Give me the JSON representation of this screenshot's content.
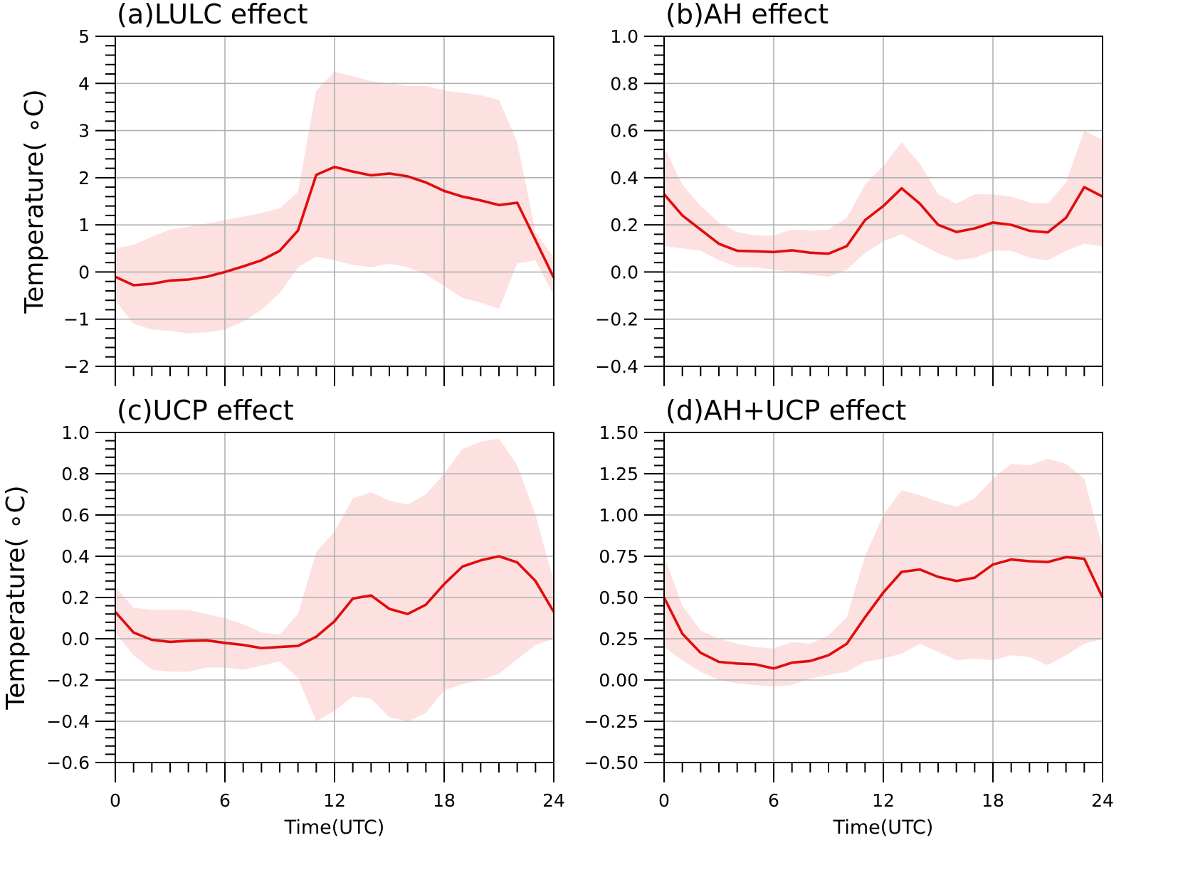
{
  "chart_data": [
    {
      "type": "line",
      "title": "(a)LULC effect",
      "xlabel": "",
      "ylabel": "Temperature( ∘C)",
      "xlim": [
        0,
        24
      ],
      "ylim": [
        -2,
        5
      ],
      "xticks": [
        0,
        6,
        12,
        18,
        24
      ],
      "xtick_labels": [
        "",
        "",
        "",
        "",
        ""
      ],
      "yticks": [
        -2,
        -1,
        0,
        1,
        2,
        3,
        4,
        5
      ],
      "ytick_labels": [
        "−2",
        "−1",
        "0",
        "1",
        "2",
        "3",
        "4",
        "5"
      ],
      "grid": true,
      "x": [
        0,
        1,
        2,
        3,
        4,
        5,
        6,
        7,
        8,
        9,
        10,
        11,
        12,
        13,
        14,
        15,
        16,
        17,
        18,
        19,
        20,
        21,
        22,
        23,
        24
      ],
      "series": [
        {
          "values": [
            -0.1,
            -0.28,
            -0.25,
            -0.18,
            -0.16,
            -0.1,
            0.0,
            0.12,
            0.25,
            0.45,
            0.88,
            2.06,
            2.23,
            2.13,
            2.05,
            2.09,
            2.03,
            1.9,
            1.72,
            1.6,
            1.52,
            1.42,
            1.47,
            0.68,
            -0.12
          ],
          "band_upper": [
            0.5,
            0.58,
            0.75,
            0.9,
            0.96,
            1.03,
            1.1,
            1.18,
            1.25,
            1.35,
            1.7,
            3.85,
            4.25,
            4.15,
            4.05,
            4.0,
            3.95,
            3.95,
            3.85,
            3.8,
            3.75,
            3.65,
            2.75,
            0.85,
            0.3
          ],
          "band_lower": [
            -0.6,
            -1.1,
            -1.22,
            -1.25,
            -1.3,
            -1.28,
            -1.22,
            -1.05,
            -0.8,
            -0.45,
            0.1,
            0.33,
            0.25,
            0.15,
            0.1,
            0.18,
            0.1,
            -0.05,
            -0.3,
            -0.55,
            -0.65,
            -0.78,
            0.18,
            0.25,
            -0.5
          ]
        }
      ]
    },
    {
      "type": "line",
      "title": "(b)AH effect",
      "xlabel": "",
      "ylabel": "",
      "xlim": [
        0,
        24
      ],
      "ylim": [
        -0.4,
        1.0
      ],
      "xticks": [
        0,
        6,
        12,
        18,
        24
      ],
      "xtick_labels": [
        "",
        "",
        "",
        "",
        ""
      ],
      "yticks": [
        -0.4,
        -0.2,
        0.0,
        0.2,
        0.4,
        0.6,
        0.8,
        1.0
      ],
      "ytick_labels": [
        "−0.4",
        "−0.2",
        "0.0",
        "0.2",
        "0.4",
        "0.6",
        "0.8",
        "1.0"
      ],
      "grid": true,
      "x": [
        0,
        1,
        2,
        3,
        4,
        5,
        6,
        7,
        8,
        9,
        10,
        11,
        12,
        13,
        14,
        15,
        16,
        17,
        18,
        19,
        20,
        21,
        22,
        23,
        24
      ],
      "series": [
        {
          "values": [
            0.33,
            0.24,
            0.18,
            0.12,
            0.09,
            0.088,
            0.085,
            0.092,
            0.082,
            0.078,
            0.11,
            0.22,
            0.28,
            0.355,
            0.29,
            0.2,
            0.17,
            0.185,
            0.21,
            0.2,
            0.175,
            0.168,
            0.23,
            0.36,
            0.32
          ],
          "band_upper": [
            0.53,
            0.37,
            0.28,
            0.21,
            0.17,
            0.155,
            0.155,
            0.18,
            0.175,
            0.18,
            0.23,
            0.37,
            0.45,
            0.55,
            0.46,
            0.33,
            0.29,
            0.33,
            0.33,
            0.32,
            0.295,
            0.29,
            0.38,
            0.6,
            0.56
          ],
          "band_lower": [
            0.11,
            0.1,
            0.09,
            0.05,
            0.02,
            0.02,
            0.01,
            0.0,
            -0.01,
            -0.02,
            0.01,
            0.08,
            0.13,
            0.16,
            0.12,
            0.08,
            0.05,
            0.06,
            0.09,
            0.09,
            0.06,
            0.05,
            0.09,
            0.12,
            0.11
          ]
        }
      ]
    },
    {
      "type": "line",
      "title": "(c)UCP effect",
      "xlabel": "Time(UTC)",
      "ylabel": "Temperature( ∘C)",
      "xlim": [
        0,
        24
      ],
      "ylim": [
        -0.6,
        1.0
      ],
      "xticks": [
        0,
        6,
        12,
        18,
        24
      ],
      "xtick_labels": [
        "0",
        "6",
        "12",
        "18",
        "24"
      ],
      "yticks": [
        -0.6,
        -0.4,
        -0.2,
        0.0,
        0.2,
        0.4,
        0.6,
        0.8,
        1.0
      ],
      "ytick_labels": [
        "−0.6",
        "−0.4",
        "−0.2",
        "0.0",
        "0.2",
        "0.4",
        "0.6",
        "0.8",
        "1.0"
      ],
      "grid": true,
      "x": [
        0,
        1,
        2,
        3,
        4,
        5,
        6,
        7,
        8,
        9,
        10,
        11,
        12,
        13,
        14,
        15,
        16,
        17,
        18,
        19,
        20,
        21,
        22,
        23,
        24
      ],
      "series": [
        {
          "values": [
            0.13,
            0.03,
            -0.005,
            -0.015,
            -0.01,
            -0.008,
            -0.02,
            -0.03,
            -0.045,
            -0.04,
            -0.035,
            0.01,
            0.085,
            0.195,
            0.21,
            0.145,
            0.12,
            0.165,
            0.265,
            0.35,
            0.38,
            0.4,
            0.37,
            0.28,
            0.13
          ],
          "band_upper": [
            0.25,
            0.15,
            0.14,
            0.14,
            0.14,
            0.12,
            0.1,
            0.07,
            0.03,
            0.02,
            0.12,
            0.42,
            0.52,
            0.68,
            0.71,
            0.67,
            0.65,
            0.7,
            0.8,
            0.92,
            0.955,
            0.97,
            0.84,
            0.6,
            0.28
          ],
          "band_lower": [
            0.03,
            -0.08,
            -0.15,
            -0.16,
            -0.16,
            -0.14,
            -0.14,
            -0.15,
            -0.13,
            -0.11,
            -0.19,
            -0.4,
            -0.35,
            -0.28,
            -0.29,
            -0.38,
            -0.4,
            -0.36,
            -0.25,
            -0.22,
            -0.2,
            -0.17,
            -0.1,
            -0.03,
            0.0
          ]
        }
      ]
    },
    {
      "type": "line",
      "title": "(d)AH+UCP effect",
      "xlabel": "Time(UTC)",
      "ylabel": "",
      "xlim": [
        0,
        24
      ],
      "ylim": [
        -0.5,
        1.5
      ],
      "xticks": [
        0,
        6,
        12,
        18,
        24
      ],
      "xtick_labels": [
        "0",
        "6",
        "12",
        "18",
        "24"
      ],
      "yticks": [
        -0.5,
        -0.25,
        0.0,
        0.25,
        0.5,
        0.75,
        1.0,
        1.25,
        1.5
      ],
      "ytick_labels": [
        "−0.50",
        "−0.25",
        "0.00",
        "0.25",
        "0.50",
        "0.75",
        "1.00",
        "1.25",
        "1.50"
      ],
      "grid": true,
      "x": [
        0,
        1,
        2,
        3,
        4,
        5,
        6,
        7,
        8,
        9,
        10,
        11,
        12,
        13,
        14,
        15,
        16,
        17,
        18,
        19,
        20,
        21,
        22,
        23,
        24
      ],
      "series": [
        {
          "values": [
            0.5,
            0.28,
            0.165,
            0.11,
            0.1,
            0.095,
            0.07,
            0.105,
            0.115,
            0.15,
            0.22,
            0.38,
            0.53,
            0.655,
            0.67,
            0.625,
            0.6,
            0.62,
            0.7,
            0.73,
            0.72,
            0.715,
            0.745,
            0.735,
            0.5
          ],
          "band_upper": [
            0.75,
            0.45,
            0.3,
            0.25,
            0.22,
            0.2,
            0.19,
            0.23,
            0.22,
            0.27,
            0.38,
            0.75,
            1.0,
            1.15,
            1.12,
            1.08,
            1.05,
            1.1,
            1.22,
            1.31,
            1.3,
            1.34,
            1.31,
            1.22,
            0.8
          ],
          "band_lower": [
            0.2,
            0.12,
            0.05,
            0.0,
            -0.02,
            -0.03,
            -0.04,
            -0.03,
            0.01,
            0.03,
            0.05,
            0.11,
            0.13,
            0.16,
            0.22,
            0.17,
            0.12,
            0.13,
            0.12,
            0.15,
            0.14,
            0.09,
            0.15,
            0.22,
            0.25
          ]
        }
      ]
    }
  ]
}
